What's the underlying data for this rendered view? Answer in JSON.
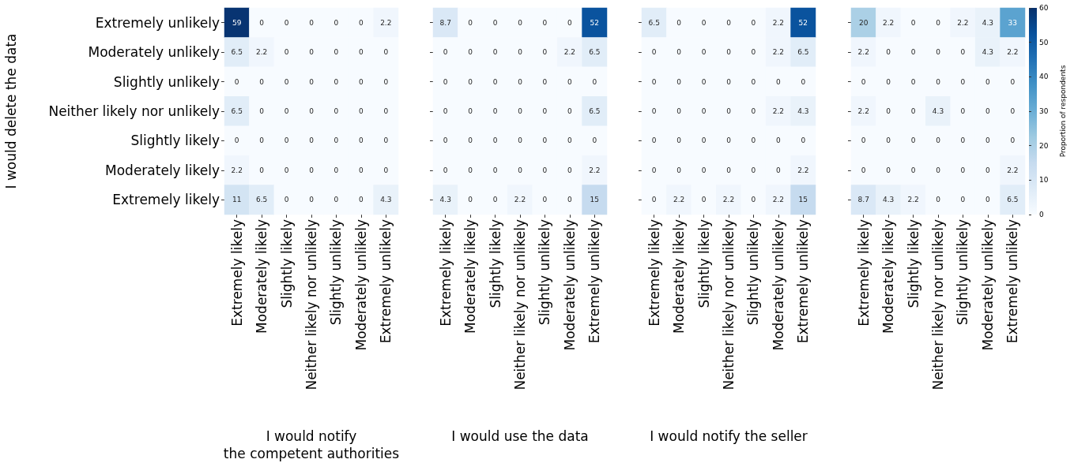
{
  "chart_data": [
    {
      "type": "heatmap",
      "xlabel": "I would notify\nthe competent authorities",
      "ylabel": "I would delete the data",
      "data_labels": true,
      "categories": [
        "Extremely likely",
        "Moderately likely",
        "Slightly likely",
        "Neither likely nor unlikely",
        "Slightly unlikely",
        "Moderately unlikely",
        "Extremely unlikely"
      ],
      "y_categories": [
        "Extremely unlikely",
        "Moderately unlikely",
        "Slightly unlikely",
        "Neither likely nor unlikely",
        "Slightly likely",
        "Moderately likely",
        "Extremely likely"
      ],
      "cells": [
        [
          59,
          0,
          0,
          0,
          0,
          0,
          2.2
        ],
        [
          6.5,
          2.2,
          0,
          0,
          0,
          0,
          0
        ],
        [
          0,
          0,
          0,
          0,
          0,
          0,
          0
        ],
        [
          6.5,
          0,
          0,
          0,
          0,
          0,
          0
        ],
        [
          0,
          0,
          0,
          0,
          0,
          0,
          0
        ],
        [
          2.2,
          0,
          0,
          0,
          0,
          0,
          0
        ],
        [
          11,
          6.5,
          0,
          0,
          0,
          0,
          4.3
        ]
      ]
    },
    {
      "type": "heatmap",
      "xlabel": "I would use the data",
      "data_labels": true,
      "y_categories": [
        null,
        null,
        null,
        null,
        null,
        null,
        null
      ],
      "categories": [
        "Extremely likely",
        "Moderately likely",
        "Slightly likely",
        "Neither likely nor unlikely",
        "Slightly unlikely",
        "Moderately unlikely",
        "Extremely unlikely"
      ],
      "cells": [
        [
          8.7,
          0,
          0,
          0,
          0,
          0,
          52
        ],
        [
          0,
          0,
          0,
          0,
          0,
          2.2,
          6.5
        ],
        [
          0,
          0,
          0,
          0,
          0,
          0,
          0
        ],
        [
          0,
          0,
          0,
          0,
          0,
          0,
          6.5
        ],
        [
          0,
          0,
          0,
          0,
          0,
          0,
          0
        ],
        [
          0,
          0,
          0,
          0,
          0,
          0,
          2.2
        ],
        [
          4.3,
          0,
          0,
          2.2,
          0,
          0,
          15
        ]
      ]
    },
    {
      "type": "heatmap",
      "xlabel": "I would notify the seller",
      "data_labels": true,
      "y_categories": [
        null,
        null,
        null,
        null,
        null,
        null,
        null
      ],
      "categories": [
        "Extremely likely",
        "Moderately likely",
        "Slightly likely",
        "Neither likely nor unlikely",
        "Slightly unlikely",
        "Moderately unlikely",
        "Extremely unlikely"
      ],
      "cells": [
        [
          6.5,
          0,
          0,
          0,
          0,
          2.2,
          52
        ],
        [
          0,
          0,
          0,
          0,
          0,
          2.2,
          6.5
        ],
        [
          0,
          0,
          0,
          0,
          0,
          0,
          0
        ],
        [
          0,
          0,
          0,
          0,
          0,
          2.2,
          4.3
        ],
        [
          0,
          0,
          0,
          0,
          0,
          0,
          0
        ],
        [
          0,
          0,
          0,
          0,
          0,
          0,
          2.2
        ],
        [
          0,
          2.2,
          0,
          2.2,
          0,
          2.2,
          15
        ]
      ]
    },
    {
      "type": "heatmap",
      "clabel": "Proportion of respondents",
      "clim": [
        0,
        60
      ],
      "cticks": [
        0,
        10,
        20,
        30,
        40,
        50,
        60
      ],
      "data_labels": true,
      "y_categories": [
        null,
        null,
        null,
        null,
        null,
        null,
        null
      ],
      "categories": [
        "Extremely likely",
        "Moderately likely",
        "Slightly likely",
        "Neither likely nor unlikely",
        "Slightly unlikely",
        "Moderately unlikely",
        "Extremely unlikely"
      ],
      "cells": [
        [
          20,
          2.2,
          0,
          0,
          2.2,
          4.3,
          33
        ],
        [
          2.2,
          0,
          0,
          0,
          0,
          4.3,
          2.2
        ],
        [
          0,
          0,
          0,
          0,
          0,
          0,
          0
        ],
        [
          2.2,
          0,
          0,
          4.3,
          0,
          0,
          0
        ],
        [
          0,
          0,
          0,
          0,
          0,
          0,
          0
        ],
        [
          0,
          0,
          0,
          0,
          0,
          0,
          2.2
        ],
        [
          8.7,
          4.3,
          2.2,
          0,
          0,
          0,
          6.5
        ]
      ]
    }
  ]
}
